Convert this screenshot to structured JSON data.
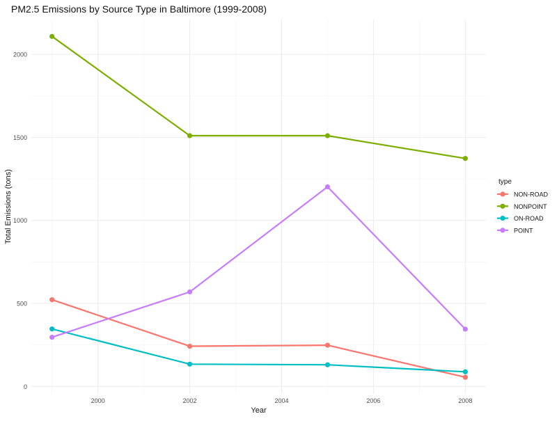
{
  "chart_data": {
    "type": "line",
    "title": "PM2.5 Emissions by Source Type in Baltimore (1999-2008)",
    "xlabel": "Year",
    "ylabel": "Total Emissions (tons)",
    "x": [
      1999,
      2002,
      2005,
      2008
    ],
    "xticks": [
      2000,
      2002,
      2004,
      2006,
      2008
    ],
    "yticks": [
      0,
      500,
      1000,
      1500,
      2000
    ],
    "xlim": [
      1998.55,
      2008.45
    ],
    "ylim": [
      -45,
      2210
    ],
    "grid": true,
    "legend": {
      "title": "type",
      "placement": "right"
    },
    "series": [
      {
        "name": "NON-ROAD",
        "color": "#F8766D",
        "values": [
          522,
          242,
          248,
          55
        ]
      },
      {
        "name": "NONPOINT",
        "color": "#7CAE00",
        "values": [
          2108,
          1510,
          1510,
          1373
        ]
      },
      {
        "name": "ON-ROAD",
        "color": "#00BFC4",
        "values": [
          346,
          134,
          130,
          88
        ]
      },
      {
        "name": "POINT",
        "color": "#C77CFF",
        "values": [
          296,
          569,
          1202,
          345
        ]
      }
    ]
  }
}
